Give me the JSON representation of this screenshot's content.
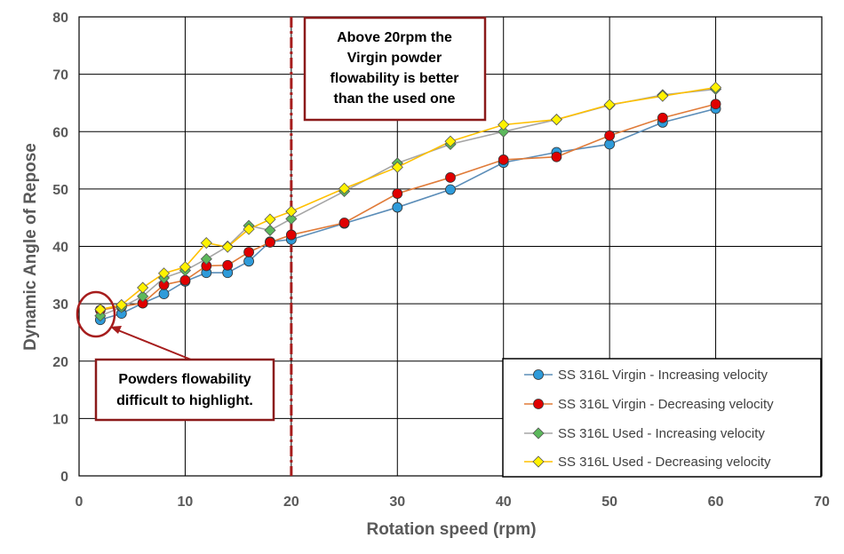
{
  "chart_data": {
    "type": "line",
    "xlabel": "Rotation speed (rpm)",
    "ylabel": "Dynamic Angle of Repose",
    "xlim": [
      0,
      70
    ],
    "ylim": [
      0,
      80
    ],
    "xticks": [
      "0",
      "10",
      "20",
      "30",
      "40",
      "50",
      "60",
      "70"
    ],
    "yticks": [
      "0",
      "10",
      "20",
      "30",
      "40",
      "50",
      "60",
      "70",
      "80"
    ],
    "grid": true,
    "legend_position": "bottom-right",
    "series": [
      {
        "name": "SS 316L Virgin - Increasing velocity",
        "color": "#2E9BDA",
        "line_color": "#5B8DB8",
        "marker": "circle",
        "points": [
          [
            2,
            27.2
          ],
          [
            4,
            28.3
          ],
          [
            6,
            30.1
          ],
          [
            8,
            31.7
          ],
          [
            10,
            33.9
          ],
          [
            12,
            35.4
          ],
          [
            14,
            35.4
          ],
          [
            16,
            37.4
          ],
          [
            18,
            40.8
          ],
          [
            20,
            41.2
          ],
          [
            25,
            44.0
          ],
          [
            30,
            46.8
          ],
          [
            35,
            49.9
          ],
          [
            40,
            54.6
          ],
          [
            45,
            56.4
          ],
          [
            50,
            57.8
          ],
          [
            55,
            61.6
          ],
          [
            60,
            64.0
          ]
        ]
      },
      {
        "name": "SS 316L Virgin - Decreasing velocity",
        "color": "#E00000",
        "line_color": "#E07B39",
        "marker": "circle",
        "points": [
          [
            2,
            28.9
          ],
          [
            4,
            29.5
          ],
          [
            6,
            30.1
          ],
          [
            8,
            33.3
          ],
          [
            10,
            34.1
          ],
          [
            12,
            36.6
          ],
          [
            14,
            36.7
          ],
          [
            16,
            39.0
          ],
          [
            18,
            40.7
          ],
          [
            20,
            42.0
          ],
          [
            25,
            44.1
          ],
          [
            30,
            49.2
          ],
          [
            35,
            52.0
          ],
          [
            40,
            55.1
          ],
          [
            45,
            55.6
          ],
          [
            50,
            59.3
          ],
          [
            55,
            62.4
          ],
          [
            60,
            64.8
          ]
        ]
      },
      {
        "name": "SS 316L Used - Increasing velocity",
        "color": "#5CB85C",
        "line_color": "#A5A5A5",
        "marker": "diamond",
        "points": [
          [
            2,
            27.9
          ],
          [
            4,
            29.4
          ],
          [
            6,
            31.3
          ],
          [
            8,
            34.5
          ],
          [
            10,
            35.8
          ],
          [
            12,
            37.8
          ],
          [
            14,
            40.0
          ],
          [
            16,
            43.6
          ],
          [
            18,
            42.8
          ],
          [
            20,
            44.8
          ],
          [
            25,
            49.6
          ],
          [
            30,
            54.5
          ],
          [
            35,
            57.8
          ],
          [
            40,
            60.0
          ],
          [
            45,
            62.1
          ],
          [
            50,
            64.6
          ],
          [
            55,
            66.4
          ],
          [
            60,
            67.4
          ]
        ]
      },
      {
        "name": "SS 316L Used - Decreasing velocity",
        "color": "#FFF200",
        "line_color": "#FFC000",
        "marker": "diamond",
        "points": [
          [
            2,
            29.0
          ],
          [
            4,
            29.8
          ],
          [
            6,
            32.8
          ],
          [
            8,
            35.3
          ],
          [
            10,
            36.4
          ],
          [
            12,
            40.6
          ],
          [
            14,
            39.9
          ],
          [
            16,
            43.0
          ],
          [
            18,
            44.7
          ],
          [
            20,
            46.1
          ],
          [
            25,
            50.1
          ],
          [
            30,
            53.8
          ],
          [
            35,
            58.3
          ],
          [
            40,
            61.2
          ],
          [
            45,
            62.1
          ],
          [
            50,
            64.7
          ],
          [
            55,
            66.2
          ],
          [
            60,
            67.7
          ]
        ]
      }
    ],
    "reference_line": {
      "x": 20,
      "color": "#A61C1C",
      "style": "dash-dot"
    },
    "annotations": [
      {
        "id": "above20",
        "lines": [
          "Above 20rpm the",
          "Virgin powder",
          "flowability is better",
          "than the used one"
        ],
        "border_color": "#8B1A1A"
      },
      {
        "id": "powders",
        "lines": [
          "Powders flowability",
          "difficult to highlight."
        ],
        "border_color": "#8B1A1A"
      }
    ]
  }
}
